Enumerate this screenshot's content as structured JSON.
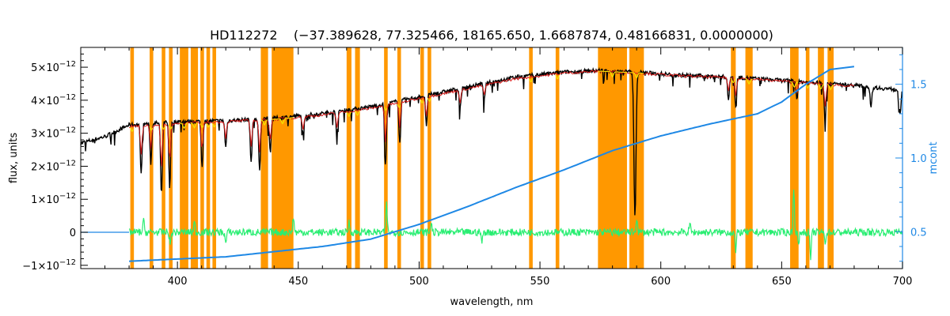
{
  "chart_data": {
    "type": "line",
    "title": "HD112272    (−37.389628, 77.325466, 18165.650, 1.6687874, 0.48166831, 0.0000000)",
    "xlabel": "wavelength, nm",
    "ylabel": "flux, units",
    "y2label": "mcont",
    "xlim": [
      360,
      700
    ],
    "ylim": [
      -1.1e-12,
      5.6e-12
    ],
    "y2lim": [
      0.25,
      1.75
    ],
    "xticks": [
      {
        "value": 400,
        "label": "400"
      },
      {
        "value": 450,
        "label": "450"
      },
      {
        "value": 500,
        "label": "500"
      },
      {
        "value": 550,
        "label": "550"
      },
      {
        "value": 600,
        "label": "600"
      },
      {
        "value": 650,
        "label": "650"
      },
      {
        "value": 700,
        "label": "700"
      }
    ],
    "yticks": [
      {
        "value": -1e-12,
        "base": "−1×10",
        "exp": "−12"
      },
      {
        "value": 0,
        "base": "0",
        "exp": ""
      },
      {
        "value": 1e-12,
        "base": "1×10",
        "exp": "−12"
      },
      {
        "value": 2e-12,
        "base": "2×10",
        "exp": "−12"
      },
      {
        "value": 3e-12,
        "base": "3×10",
        "exp": "−12"
      },
      {
        "value": 4e-12,
        "base": "4×10",
        "exp": "−12"
      },
      {
        "value": 5e-12,
        "base": "5×10",
        "exp": "−12"
      }
    ],
    "y2ticks": [
      {
        "value": 0.5,
        "label": "0.5"
      },
      {
        "value": 1.0,
        "label": "1.0"
      },
      {
        "value": 1.5,
        "label": "1.5"
      }
    ],
    "masked_bands": [
      [
        380.5,
        382
      ],
      [
        388.5,
        390
      ],
      [
        393.5,
        395
      ],
      [
        396.5,
        398
      ],
      [
        401,
        404.5
      ],
      [
        405.5,
        408.5
      ],
      [
        409.5,
        411
      ],
      [
        412,
        413.5
      ],
      [
        414.5,
        416
      ],
      [
        434.5,
        437.5
      ],
      [
        439,
        448
      ],
      [
        470,
        472
      ],
      [
        473.5,
        475.5
      ],
      [
        485.5,
        487
      ],
      [
        491,
        492.5
      ],
      [
        500.5,
        502
      ],
      [
        503.5,
        505
      ],
      [
        545.5,
        547
      ],
      [
        556.5,
        558
      ],
      [
        574,
        586
      ],
      [
        587,
        593
      ],
      [
        629,
        631
      ],
      [
        635,
        638
      ],
      [
        653.5,
        657
      ],
      [
        660,
        661.5
      ],
      [
        665,
        667.5
      ],
      [
        669,
        671.5
      ]
    ],
    "series": [
      {
        "name": "",
        "color": "#000000",
        "x": [
          360,
          370,
          380,
          390,
          400,
          420,
          440,
          460,
          480,
          500,
          520,
          540,
          560,
          575,
          590,
          610,
          630,
          650,
          660,
          680,
          700
        ],
        "y": [
          2.7e-12,
          2.9e-12,
          3.25e-12,
          3.3e-12,
          3.35e-12,
          3.38e-12,
          3.45e-12,
          3.6e-12,
          3.8e-12,
          4.1e-12,
          4.4e-12,
          4.7e-12,
          4.85e-12,
          4.9e-12,
          4.85e-12,
          4.75e-12,
          4.7e-12,
          4.6e-12,
          4.55e-12,
          4.45e-12,
          4.3e-12
        ],
        "absorption": [
          {
            "x": 385,
            "depth": 1.5e-12
          },
          {
            "x": 389,
            "depth": 1.2e-12
          },
          {
            "x": 393.4,
            "depth": 2.2e-12
          },
          {
            "x": 396.8,
            "depth": 2e-12
          },
          {
            "x": 410.2,
            "depth": 1.4e-12
          },
          {
            "x": 420,
            "depth": 8e-13
          },
          {
            "x": 430.5,
            "depth": 1.3e-12
          },
          {
            "x": 434,
            "depth": 1.6e-12
          },
          {
            "x": 438.4,
            "depth": 1e-12
          },
          {
            "x": 452,
            "depth": 6e-13
          },
          {
            "x": 466,
            "depth": 7e-13
          },
          {
            "x": 486.1,
            "depth": 1.9e-12
          },
          {
            "x": 492,
            "depth": 1.3e-12
          },
          {
            "x": 503,
            "depth": 9e-13
          },
          {
            "x": 517,
            "depth": 6e-13
          },
          {
            "x": 527,
            "depth": 5e-13
          },
          {
            "x": 589.3,
            "depth": 4.4e-12
          },
          {
            "x": 628,
            "depth": 7e-13
          },
          {
            "x": 631,
            "depth": 9e-13
          },
          {
            "x": 656.3,
            "depth": 5e-13
          },
          {
            "x": 668,
            "depth": 1.1e-12
          },
          {
            "x": 687,
            "depth": 6e-13
          },
          {
            "x": 699,
            "depth": 7e-13
          }
        ]
      },
      {
        "name": "",
        "color": "#dd1a1a",
        "x": [
          380,
          400,
          420,
          440,
          460,
          480,
          500,
          520,
          540,
          560,
          575,
          590,
          610,
          630,
          650,
          660,
          680
        ],
        "y": [
          3.2e-12,
          3.3e-12,
          3.35e-12,
          3.42e-12,
          3.55e-12,
          3.75e-12,
          4.05e-12,
          4.35e-12,
          4.65e-12,
          4.82e-12,
          4.88e-12,
          4.83e-12,
          4.73e-12,
          4.68e-12,
          4.58e-12,
          4.52e-12,
          4.43e-12
        ]
      },
      {
        "name": "",
        "color": "#1e88e5",
        "axis": "y2",
        "x": [
          380,
          420,
          460,
          480,
          500,
          520,
          540,
          560,
          580,
          600,
          620,
          640,
          650,
          660,
          670,
          680
        ],
        "y": [
          0.3,
          0.33,
          0.4,
          0.45,
          0.55,
          0.67,
          0.8,
          0.92,
          1.05,
          1.15,
          1.23,
          1.3,
          1.38,
          1.5,
          1.6,
          1.62
        ]
      },
      {
        "name": "",
        "color": "#29ee72",
        "x": [
          380,
          700
        ],
        "y": [
          0,
          0
        ],
        "spikes": [
          {
            "x": 386,
            "dy": 3.5e-13
          },
          {
            "x": 397,
            "dy": -4e-13
          },
          {
            "x": 407,
            "dy": 3e-13
          },
          {
            "x": 420,
            "dy": -3.5e-13
          },
          {
            "x": 448,
            "dy": 4.5e-13
          },
          {
            "x": 471,
            "dy": 3e-13
          },
          {
            "x": 486.5,
            "dy": 8.5e-13
          },
          {
            "x": 505,
            "dy": 3e-13
          },
          {
            "x": 526,
            "dy": -3e-13
          },
          {
            "x": 590,
            "dy": 4.5e-13
          },
          {
            "x": 612,
            "dy": 2.5e-13
          },
          {
            "x": 631,
            "dy": -6e-13
          },
          {
            "x": 655,
            "dy": 1.3e-12
          },
          {
            "x": 657,
            "dy": -4e-13
          },
          {
            "x": 662,
            "dy": -8e-13
          },
          {
            "x": 668,
            "dy": -3e-13
          }
        ]
      }
    ],
    "colors": {
      "mask": "#ff9800",
      "yellow_model": "#f2e600"
    }
  }
}
